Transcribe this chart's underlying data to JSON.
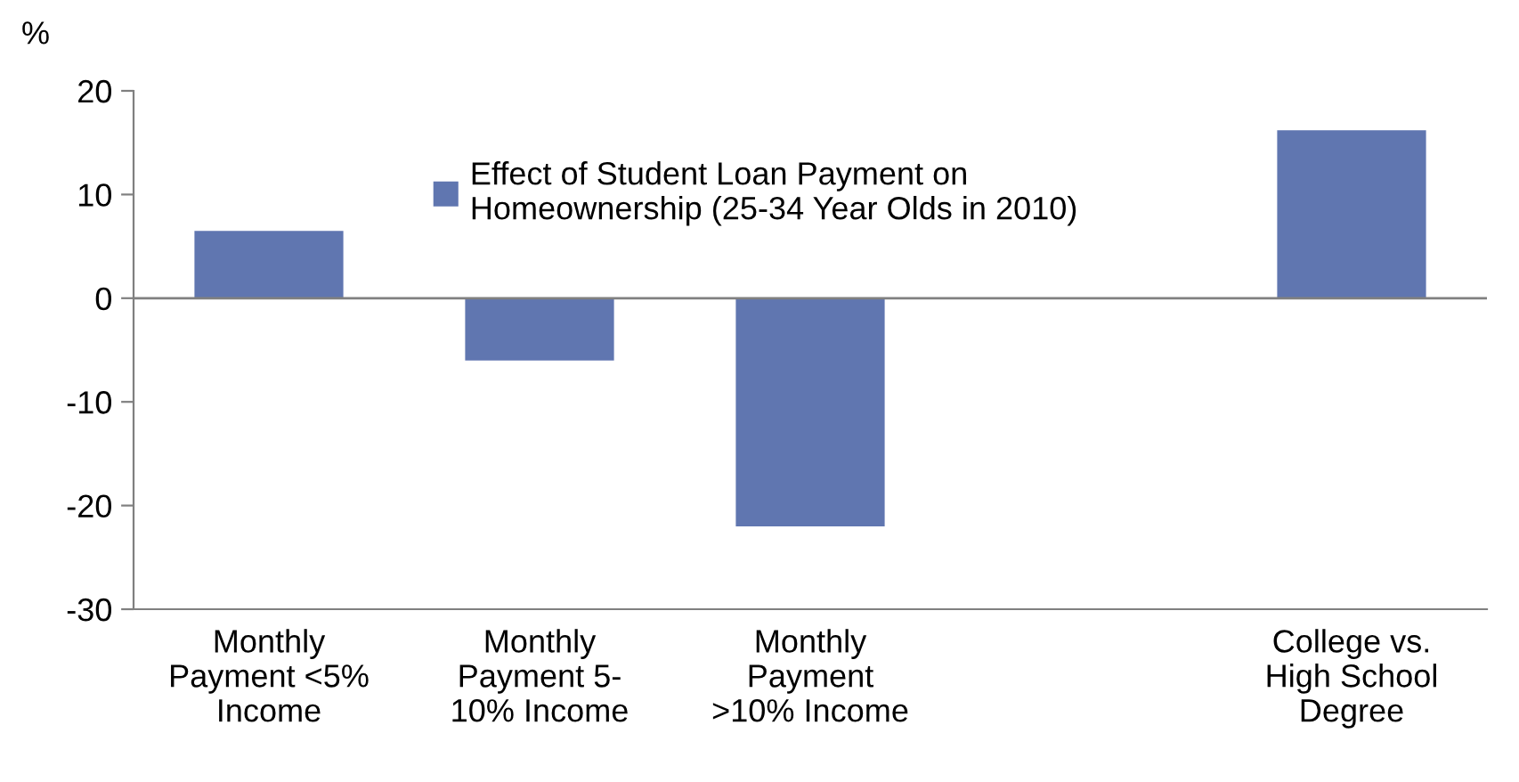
{
  "chart_data": {
    "type": "bar",
    "ylabel": "%",
    "categories": [
      "Monthly\nPayment <5%\nIncome",
      "Monthly\nPayment 5-\n10% Income",
      "Monthly\nPayment\n>10% Income",
      null,
      "College vs.\nHigh School\nDegree"
    ],
    "series": [
      {
        "name": "Effect of Student Loan Payment on\nHomeownership (25-34 Year Olds in 2010)",
        "color": "#6076b0",
        "values": [
          6.5,
          -6,
          -22,
          null,
          16.2
        ]
      }
    ],
    "ylim": [
      -30,
      20
    ],
    "yticks": [
      -30,
      -20,
      -10,
      0,
      10,
      20
    ],
    "ref_lines": [
      {
        "axis": "y",
        "value": 0,
        "color": "#808080"
      }
    ],
    "grid": false,
    "legend": "top"
  }
}
